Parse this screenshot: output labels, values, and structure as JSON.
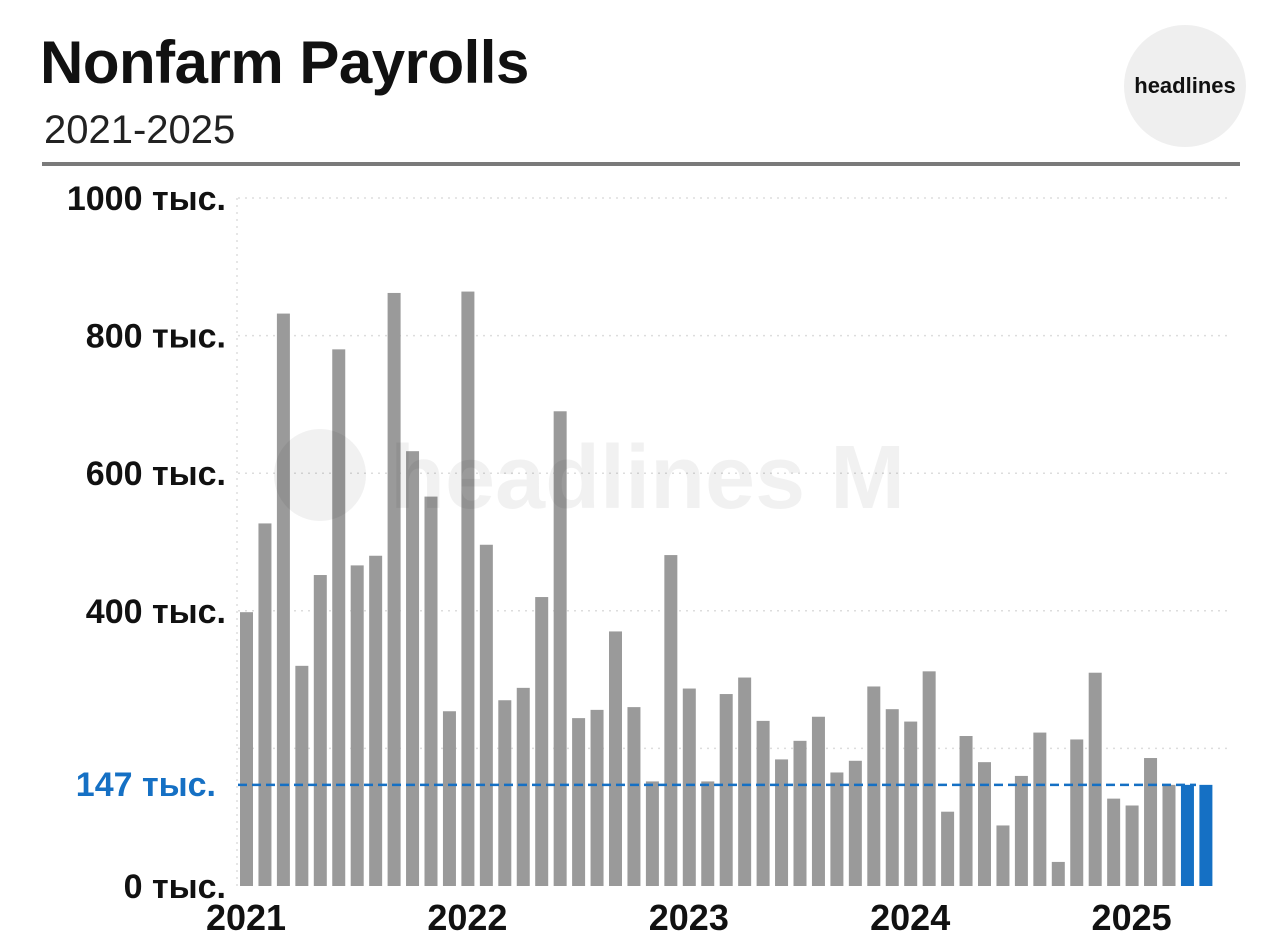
{
  "header": {
    "title": "Nonfarm Payrolls",
    "subtitle": "2021-2025",
    "badge": "headlines",
    "watermark": "headlines M"
  },
  "colors": {
    "bar": "#9a9a9a",
    "highlight": "#1570c4",
    "reference": "#1570c4",
    "grid": "#dddddd"
  },
  "chart_data": {
    "type": "bar",
    "ylim": [
      0,
      1000
    ],
    "yticks": [
      {
        "value": 0,
        "label": "0 тыс."
      },
      {
        "value": 400,
        "label": "400 тыс."
      },
      {
        "value": 600,
        "label": "600 тыс."
      },
      {
        "value": 800,
        "label": "800 тыс."
      },
      {
        "value": 1000,
        "label": "1000 тыс."
      }
    ],
    "gridlines": [
      200,
      400,
      600,
      800,
      1000
    ],
    "xticks": [
      {
        "index": 0,
        "label": "2021"
      },
      {
        "index": 12,
        "label": "2022"
      },
      {
        "index": 24,
        "label": "2023"
      },
      {
        "index": 36,
        "label": "2024"
      },
      {
        "index": 48,
        "label": "2025"
      }
    ],
    "values": [
      398,
      527,
      832,
      320,
      452,
      780,
      466,
      480,
      862,
      632,
      566,
      254,
      864,
      496,
      270,
      288,
      420,
      690,
      244,
      256,
      370,
      260,
      152,
      481,
      287,
      152,
      279,
      303,
      240,
      184,
      211,
      246,
      165,
      182,
      290,
      257,
      239,
      312,
      108,
      218,
      180,
      88,
      160,
      223,
      35,
      213,
      310,
      127,
      117,
      186,
      147,
      147,
      147
    ],
    "highlight_indices": [
      51,
      52
    ],
    "reference": {
      "value": 147,
      "label": "147 тыс."
    }
  }
}
